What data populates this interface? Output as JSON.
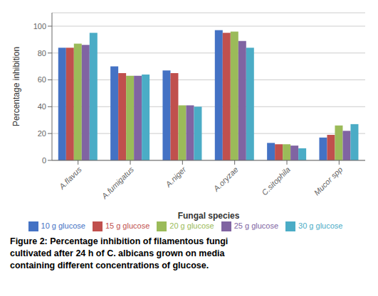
{
  "chart_data": {
    "type": "bar",
    "categories": [
      "A.flavus",
      "A.fumigatus",
      "A.niger",
      "A.oryzae",
      "C.sitophila",
      "Mucor spp"
    ],
    "series": [
      {
        "name": "10 g glucose",
        "color": "#4472C4",
        "values": [
          84,
          70,
          67,
          97,
          13,
          17
        ]
      },
      {
        "name": "15 g glucose",
        "color": "#C0504D",
        "values": [
          84,
          65,
          65,
          95,
          12,
          19
        ]
      },
      {
        "name": "20 g glucose",
        "color": "#9BBB59",
        "values": [
          87,
          63,
          41,
          96,
          12,
          26
        ]
      },
      {
        "name": "25 g glucose",
        "color": "#8064A2",
        "values": [
          86,
          63,
          41,
          89,
          11,
          22
        ]
      },
      {
        "name": "30 g glucose",
        "color": "#4BACC6",
        "values": [
          95,
          64,
          40,
          84,
          9,
          27
        ]
      }
    ],
    "ylabel": "Percentage inhibition",
    "xlabel": "Fungal species",
    "ylim": [
      0,
      110
    ],
    "yticks": [
      0,
      20,
      40,
      60,
      80,
      100
    ],
    "grid": true,
    "annotations": [
      "Figure 2: Percentage inhibition of filamentous fungi",
      "cultivated after 24 h of C. albicans grown on media",
      "containing different concentrations of glucose."
    ]
  }
}
